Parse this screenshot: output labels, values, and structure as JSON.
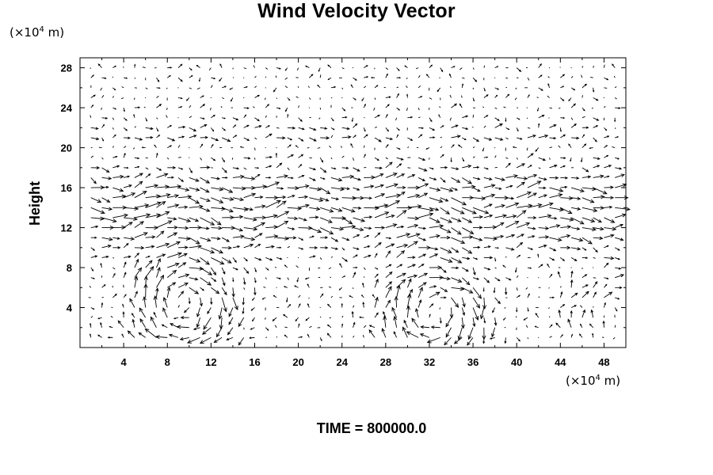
{
  "chart_data": {
    "type": "vector_field",
    "title": "Wind Velocity Vector",
    "ylabel": "Height",
    "xlabel": "",
    "x_unit": {
      "prefix": "(×10",
      "exp": "4",
      "suffix": " m)"
    },
    "y_unit": {
      "prefix": "(×10",
      "exp": "4",
      "suffix": " m)"
    },
    "xlim": [
      0,
      50
    ],
    "ylim": [
      0,
      29
    ],
    "x_ticks": [
      4,
      8,
      12,
      16,
      20,
      24,
      28,
      32,
      36,
      40,
      44,
      48
    ],
    "y_ticks": [
      4,
      8,
      12,
      16,
      20,
      24,
      28
    ],
    "grid": false,
    "circulations": [
      {
        "center_x": 9.5,
        "center_y": 4.5,
        "strength": 1.0
      },
      {
        "center_x": 32.5,
        "center_y": 3.5,
        "strength": 1.0
      },
      {
        "center_x": 49.0,
        "center_y": 3.0,
        "strength": 0.6
      }
    ],
    "upper_flow": {
      "from_y": 8,
      "to_y": 20,
      "direction": "eastward"
    },
    "vector_color": "#000000"
  },
  "footer": {
    "time_label": "TIME = 800000.0"
  }
}
